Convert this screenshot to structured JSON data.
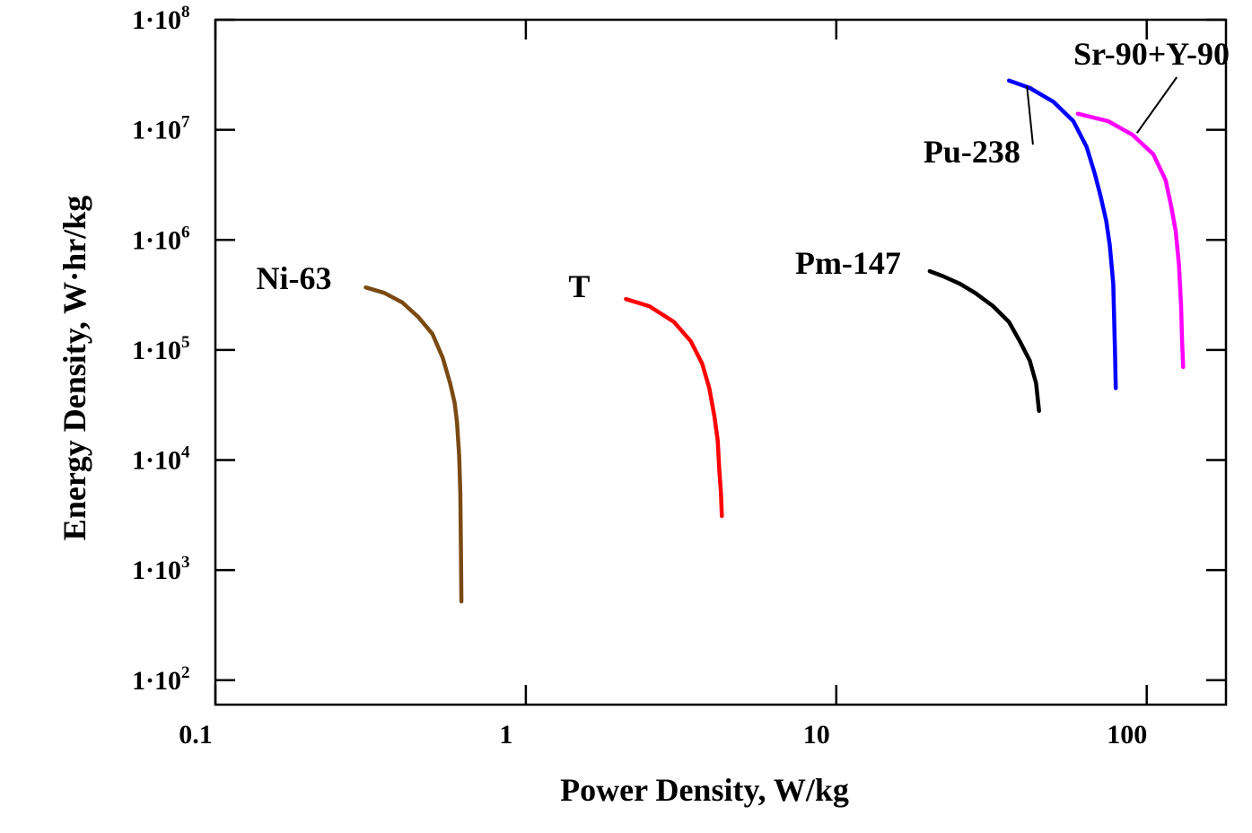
{
  "chart_data": {
    "type": "line",
    "xlabel": "Power Density, W/kg",
    "ylabel": "Energy Density, W·hr/kg",
    "xscale": "log",
    "yscale": "log",
    "xlim": [
      0.1,
      180
    ],
    "ylim": [
      60,
      100000000
    ],
    "grid": false,
    "x_ticks": [
      {
        "value": 0.1,
        "label": "0.1"
      },
      {
        "value": 1,
        "label": "1"
      },
      {
        "value": 10,
        "label": "10"
      },
      {
        "value": 100,
        "label": "100"
      }
    ],
    "y_ticks": [
      {
        "value": 100,
        "mant": "1·10",
        "exp": "2"
      },
      {
        "value": 1000,
        "mant": "1·10",
        "exp": "3"
      },
      {
        "value": 10000,
        "mant": "1·10",
        "exp": "4"
      },
      {
        "value": 100000,
        "mant": "1·10",
        "exp": "5"
      },
      {
        "value": 1000000,
        "mant": "1·10",
        "exp": "6"
      },
      {
        "value": 10000000,
        "mant": "1·10",
        "exp": "7"
      },
      {
        "value": 100000000,
        "mant": "1·10",
        "exp": "8"
      }
    ],
    "series": [
      {
        "name": "Ni-63",
        "color": "#7a4a12",
        "points": [
          [
            0.305,
            370000
          ],
          [
            0.35,
            330000
          ],
          [
            0.4,
            270000
          ],
          [
            0.45,
            200000
          ],
          [
            0.5,
            140000
          ],
          [
            0.54,
            85000
          ],
          [
            0.57,
            50000
          ],
          [
            0.59,
            33000
          ],
          [
            0.6,
            22000
          ],
          [
            0.61,
            11000
          ],
          [
            0.615,
            5000
          ],
          [
            0.618,
            1500
          ],
          [
            0.62,
            520
          ]
        ]
      },
      {
        "name": "T",
        "color": "#ff0000",
        "points": [
          [
            2.1,
            290000
          ],
          [
            2.5,
            250000
          ],
          [
            3.0,
            180000
          ],
          [
            3.4,
            120000
          ],
          [
            3.7,
            75000
          ],
          [
            3.9,
            45000
          ],
          [
            4.05,
            25000
          ],
          [
            4.15,
            15000
          ],
          [
            4.2,
            8000
          ],
          [
            4.25,
            5000
          ],
          [
            4.28,
            3100
          ]
        ]
      },
      {
        "name": "Pm-147",
        "color": "#000000",
        "points": [
          [
            20,
            520000
          ],
          [
            22,
            470000
          ],
          [
            25,
            400000
          ],
          [
            28,
            330000
          ],
          [
            32,
            250000
          ],
          [
            36,
            180000
          ],
          [
            39,
            120000
          ],
          [
            42,
            80000
          ],
          [
            44,
            50000
          ],
          [
            45,
            28000
          ]
        ]
      },
      {
        "name": "Pu-238",
        "color": "#0000ff",
        "points": [
          [
            36,
            28000000
          ],
          [
            42,
            24000000
          ],
          [
            50,
            18000000
          ],
          [
            58,
            12000000
          ],
          [
            64,
            7000000
          ],
          [
            68,
            4000000
          ],
          [
            71,
            2500000
          ],
          [
            74,
            1500000
          ],
          [
            76,
            900000
          ],
          [
            78,
            400000
          ],
          [
            79,
            100000
          ],
          [
            79.5,
            45000
          ]
        ]
      },
      {
        "name": "Sr-90+Y-90",
        "color": "#ff00ff",
        "points": [
          [
            60,
            14000000
          ],
          [
            75,
            12000000
          ],
          [
            90,
            9000000
          ],
          [
            105,
            6000000
          ],
          [
            115,
            3500000
          ],
          [
            120,
            2000000
          ],
          [
            124,
            1200000
          ],
          [
            127,
            600000
          ],
          [
            129,
            250000
          ],
          [
            130,
            120000
          ],
          [
            131,
            70000
          ]
        ]
      }
    ],
    "annotations": [
      {
        "text": "Ni-63",
        "series": "Ni-63"
      },
      {
        "text": "T",
        "series": "T"
      },
      {
        "text": "Pm-147",
        "series": "Pm-147"
      },
      {
        "text": "Pu-238",
        "series": "Pu-238"
      },
      {
        "text": "Sr-90+Y-90",
        "series": "Sr-90+Y-90"
      }
    ]
  }
}
